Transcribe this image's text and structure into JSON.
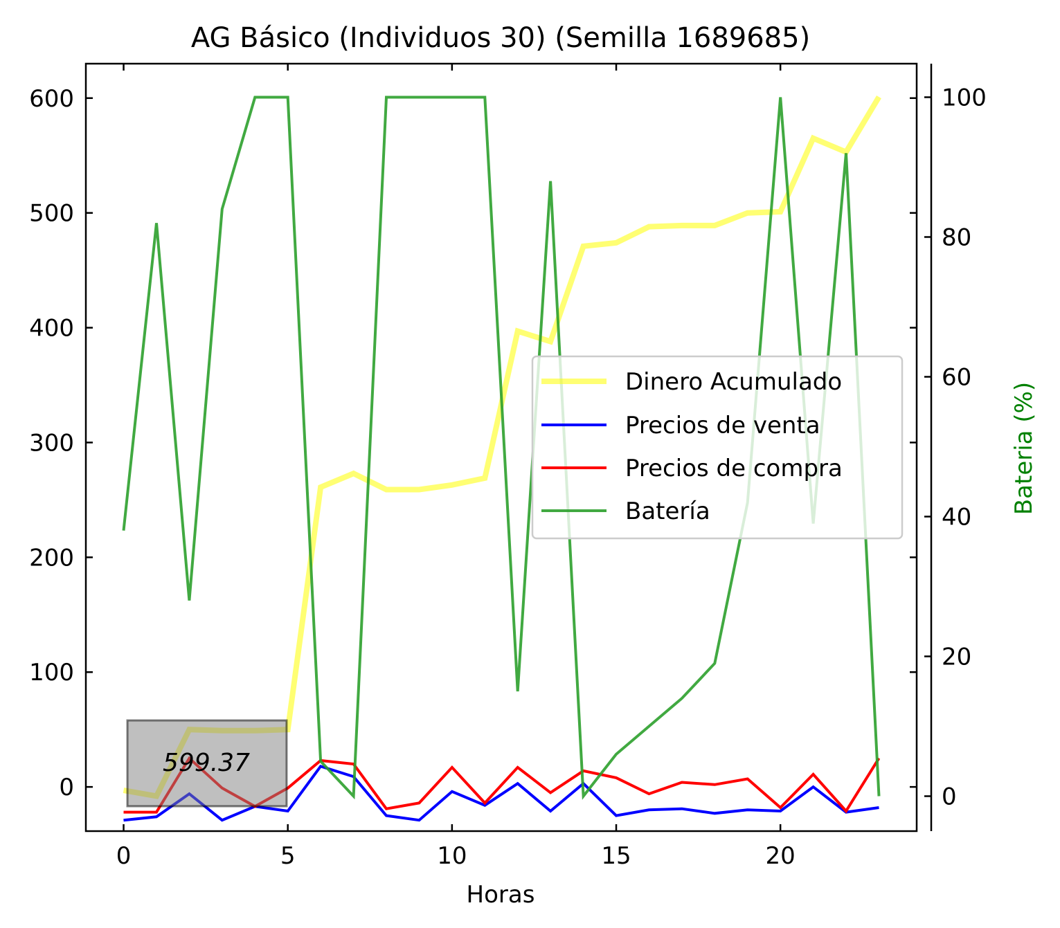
{
  "chart_data": {
    "type": "line",
    "title": "AG Básico (Individuos 30) (Semilla 1689685)",
    "xlabel": "Horas",
    "ylabel": "",
    "y2label": "Bateria (%)",
    "xlim": [
      -1.15,
      24.15
    ],
    "ylim": [
      -38.5,
      630
    ],
    "y2lim": [
      -5.0,
      104.8
    ],
    "xticks": [
      "0",
      "5",
      "10",
      "15",
      "20"
    ],
    "yticks": [
      "0",
      "100",
      "200",
      "300",
      "400",
      "500",
      "600"
    ],
    "y2ticks": [
      "0",
      "20",
      "40",
      "60",
      "80",
      "100"
    ],
    "x": [
      0,
      1,
      2,
      3,
      4,
      5,
      6,
      7,
      8,
      9,
      10,
      11,
      12,
      13,
      14,
      15,
      16,
      17,
      18,
      19,
      20,
      21,
      22,
      23
    ],
    "series": [
      {
        "name": "Dinero Acumulado",
        "axis": "left",
        "color": "#ffff00",
        "values": [
          -3,
          -8,
          50,
          49,
          49,
          50,
          261,
          273,
          259,
          259,
          263,
          269,
          397,
          388,
          471,
          474,
          488,
          489,
          489,
          500,
          501,
          565,
          553,
          601
        ]
      },
      {
        "name": "Precios de venta",
        "axis": "left",
        "color": "#0000ff",
        "values": [
          -29,
          -26,
          -6,
          -29,
          -17,
          -21,
          18,
          9,
          -25,
          -29,
          -4,
          -16,
          3,
          -21,
          3,
          -25,
          -20,
          -19,
          -23,
          -20,
          -21,
          0,
          -22,
          -18
        ]
      },
      {
        "name": "Precios de compra",
        "axis": "left",
        "color": "#ff0000",
        "values": [
          -22,
          -22,
          25,
          -1,
          -17,
          -1,
          23,
          20,
          -19,
          -14,
          17,
          -14,
          17,
          -5,
          14,
          8,
          -6,
          4,
          2,
          7,
          -18,
          11,
          -21,
          25
        ]
      },
      {
        "name": "Batería",
        "axis": "right",
        "color": "#2ca02c",
        "values": [
          38,
          82,
          28,
          84,
          100,
          100,
          5,
          0,
          100,
          100,
          100,
          100,
          15,
          88,
          0,
          6,
          10,
          14,
          19,
          42,
          100,
          39,
          92,
          0
        ]
      }
    ],
    "annotation": "599.37",
    "legend_position": "center-right",
    "grid": false
  }
}
